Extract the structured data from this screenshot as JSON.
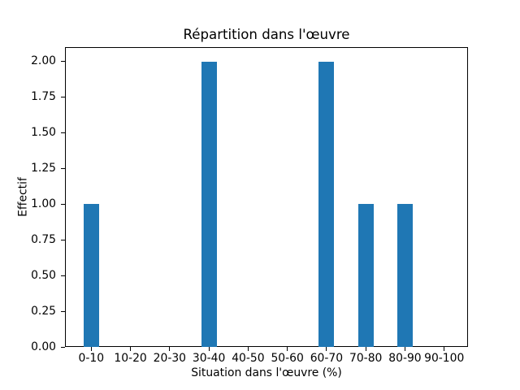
{
  "chart_data": {
    "type": "bar",
    "title": "Répartition dans l'œuvre",
    "xlabel": "Situation dans l'œuvre (%)",
    "ylabel": "Effectif",
    "categories": [
      "0-10",
      "10-20",
      "20-30",
      "30-40",
      "40-50",
      "50-60",
      "60-70",
      "70-80",
      "80-90",
      "90-100"
    ],
    "values": [
      1,
      0,
      0,
      2,
      0,
      0,
      2,
      1,
      1,
      0
    ],
    "ytick_values": [
      0.0,
      0.25,
      0.5,
      0.75,
      1.0,
      1.25,
      1.5,
      1.75,
      2.0
    ],
    "ytick_labels": [
      "0.00",
      "0.25",
      "0.50",
      "0.75",
      "1.00",
      "1.25",
      "1.50",
      "1.75",
      "2.00"
    ],
    "ylim": [
      0,
      2.1
    ],
    "grid": false,
    "legend": null,
    "colors": {
      "bar": "#1f77b4",
      "axis": "#000000",
      "text": "#000000",
      "background": "#ffffff"
    }
  }
}
